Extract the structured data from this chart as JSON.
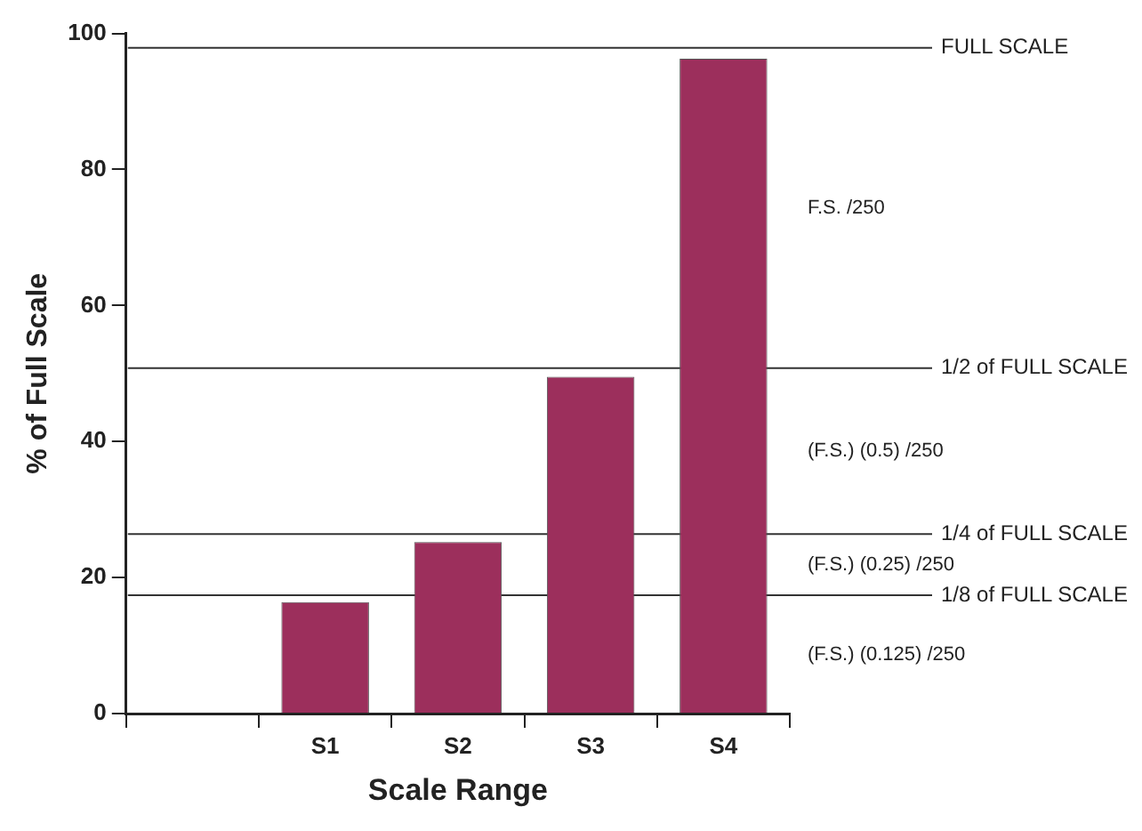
{
  "chart_data": {
    "type": "bar",
    "xlabel": "Scale Range",
    "ylabel": "% of Full Scale",
    "categories": [
      null,
      "S1",
      "S2",
      "S3",
      "S4"
    ],
    "values": [
      null,
      16.4,
      25.2,
      49.5,
      96.3
    ],
    "color": "#9c2f5c",
    "ylim": [
      0,
      100
    ],
    "yticks": [
      0,
      20,
      40,
      60,
      80,
      100
    ],
    "grid": false,
    "legend": false,
    "ref_lines": [
      {
        "axis": "y",
        "value": 97.9,
        "label": "FULL SCALE"
      },
      {
        "axis": "y",
        "value": 50.8,
        "label": "1/2 of FULL SCALE"
      },
      {
        "axis": "y",
        "value": 26.4,
        "label": "1/4 of FULL SCALE"
      },
      {
        "axis": "y",
        "value": 17.4,
        "label": "1/8 of FULL SCALE"
      }
    ],
    "annotations": [
      "F.S. /250",
      "(F.S.) (0.5) /250",
      "(F.S.) (0.25) /250",
      "(F.S.) (0.125) /250"
    ]
  }
}
